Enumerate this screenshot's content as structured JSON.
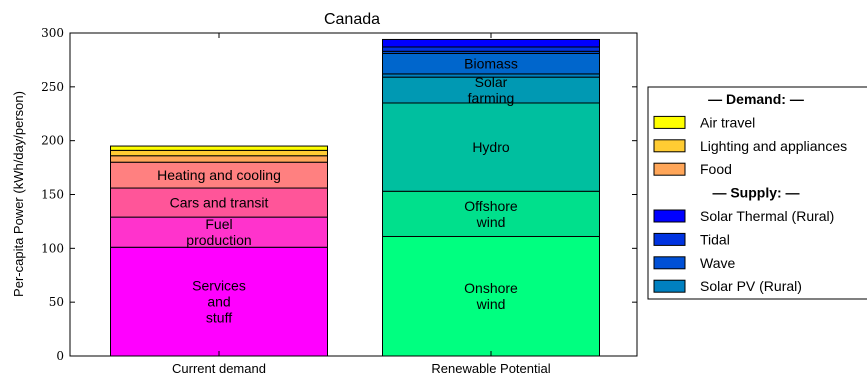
{
  "chart_data": {
    "type": "bar",
    "stacked": true,
    "title": "Canada",
    "xlabel": "",
    "ylabel": "Per-capita Power (kWh/day/person)",
    "ylim": [
      0,
      300
    ],
    "yticks": [
      0,
      50,
      100,
      150,
      200,
      250,
      300
    ],
    "categories": [
      "Current demand",
      "Renewable Potential"
    ],
    "grid": false,
    "legend_position": "right",
    "stacks": [
      {
        "category": "Current demand",
        "segments": [
          {
            "name": "Services and stuff",
            "label": [
              "Services",
              "and",
              "stuff"
            ],
            "value": 101,
            "color": "#ff00ff"
          },
          {
            "name": "Fuel production",
            "label": [
              "Fuel",
              "production"
            ],
            "value": 28,
            "color": "#ff33cc"
          },
          {
            "name": "Cars and transit",
            "label": [
              "Cars and transit"
            ],
            "value": 27,
            "color": "#ff5599"
          },
          {
            "name": "Heating and cooling",
            "label": [
              "Heating and cooling"
            ],
            "value": 24,
            "color": "#ff8080"
          },
          {
            "name": "Food",
            "label": [],
            "value": 6,
            "color": "#ffa659"
          },
          {
            "name": "Lighting and appliances",
            "label": [],
            "value": 5,
            "color": "#ffcc33"
          },
          {
            "name": "Air travel",
            "label": [],
            "value": 4,
            "color": "#ffff00"
          }
        ]
      },
      {
        "category": "Renewable Potential",
        "segments": [
          {
            "name": "Onshore wind",
            "label": [
              "Onshore",
              "wind"
            ],
            "value": 111,
            "color": "#00ff80"
          },
          {
            "name": "Offshore wind",
            "label": [
              "Offshore",
              "wind"
            ],
            "value": 42,
            "color": "#00e08c"
          },
          {
            "name": "Hydro",
            "label": [
              "Hydro"
            ],
            "value": 82,
            "color": "#00bf9f"
          },
          {
            "name": "Solar farming",
            "label": [
              "Solar",
              "farming"
            ],
            "value": 24,
            "color": "#0099b3"
          },
          {
            "name": "Solar PV (Rural)",
            "label": [],
            "value": 3,
            "color": "#0080c0"
          },
          {
            "name": "Biomass",
            "label": [
              "Biomass"
            ],
            "value": 19,
            "color": "#0066cc"
          },
          {
            "name": "Wave",
            "label": [],
            "value": 2,
            "color": "#0050d6"
          },
          {
            "name": "Tidal",
            "label": [],
            "value": 4,
            "color": "#0033e0"
          },
          {
            "name": "Solar Thermal (Rural)",
            "label": [],
            "value": 7,
            "color": "#0000ff"
          }
        ]
      }
    ],
    "legend": [
      {
        "type": "header",
        "text": "— Demand: —"
      },
      {
        "type": "item",
        "text": "Air travel",
        "color": "#ffff00"
      },
      {
        "type": "item",
        "text": "Lighting and appliances",
        "color": "#ffcc33"
      },
      {
        "type": "item",
        "text": "Food",
        "color": "#ffa659"
      },
      {
        "type": "header",
        "text": "— Supply: —"
      },
      {
        "type": "item",
        "text": "Solar Thermal (Rural)",
        "color": "#0000ff"
      },
      {
        "type": "item",
        "text": "Tidal",
        "color": "#0033e0"
      },
      {
        "type": "item",
        "text": "Wave",
        "color": "#0050d6"
      },
      {
        "type": "item",
        "text": "Solar PV (Rural)",
        "color": "#0080c0"
      }
    ]
  }
}
